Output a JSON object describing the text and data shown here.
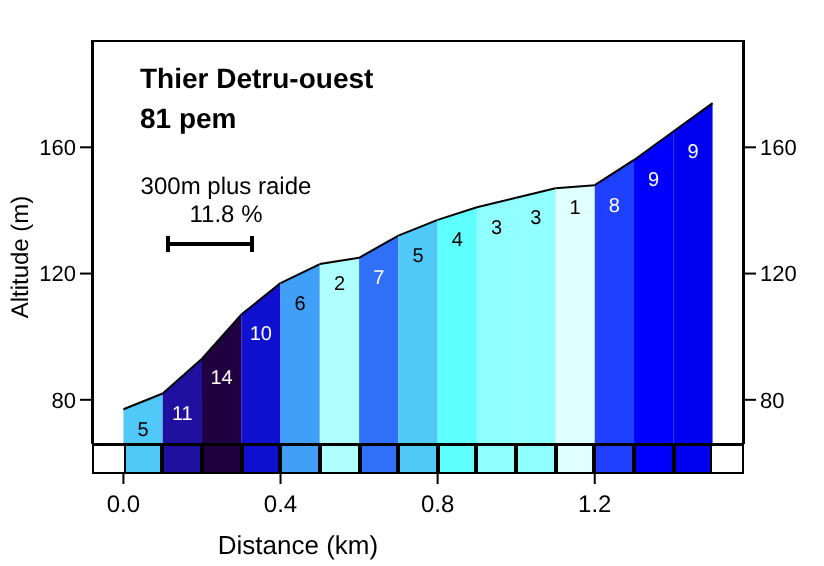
{
  "chart_data": {
    "type": "area",
    "title": "Thier Detru-ouest",
    "subtitle": "81 pem",
    "xlabel": "Distance (km)",
    "ylabel": "Altitude (m)",
    "xlim": [
      -0.08,
      1.58
    ],
    "xticks": [
      {
        "value": 0,
        "label": "0.0"
      },
      {
        "value": 0.4,
        "label": "0.4"
      },
      {
        "value": 0.8,
        "label": "0.8"
      },
      {
        "value": 1.2,
        "label": "1.2"
      }
    ],
    "ylim": [
      66,
      194
    ],
    "yticks": [
      80,
      120,
      160
    ],
    "y2lim": [
      66,
      194
    ],
    "y2ticks": [
      80,
      120,
      160
    ],
    "grid": false,
    "legend": false,
    "annotations": [
      "300m plus raide",
      "11.8 %",
      "5",
      "11",
      "14",
      "10",
      "6",
      "2",
      "7",
      "5",
      "4",
      "3",
      "3",
      "1",
      "8",
      "9",
      "9"
    ],
    "series": [
      {
        "color": "#50c8f8",
        "x": [
          0,
          0.1
        ],
        "values": [
          77,
          82
        ]
      },
      {
        "color": "#2010a0",
        "x": [
          0.1,
          0.2
        ],
        "values": [
          82,
          93
        ]
      },
      {
        "color": "#200040",
        "x": [
          0.2,
          0.3
        ],
        "values": [
          93,
          107
        ]
      },
      {
        "color": "#1010d0",
        "x": [
          0.3,
          0.4
        ],
        "values": [
          107,
          117
        ]
      },
      {
        "color": "#40a0f8",
        "x": [
          0.4,
          0.5
        ],
        "values": [
          117,
          123
        ]
      },
      {
        "color": "#b0ffff",
        "x": [
          0.5,
          0.6
        ],
        "values": [
          123,
          125
        ]
      },
      {
        "color": "#3070f8",
        "x": [
          0.6,
          0.7
        ],
        "values": [
          125,
          132
        ]
      },
      {
        "color": "#50c8f8",
        "x": [
          0.7,
          0.8
        ],
        "values": [
          132,
          137
        ]
      },
      {
        "color": "#60ffff",
        "x": [
          0.8,
          0.9
        ],
        "values": [
          137,
          141
        ]
      },
      {
        "color": "#90ffff",
        "x": [
          0.9,
          1.0
        ],
        "values": [
          141,
          144
        ]
      },
      {
        "color": "#90ffff",
        "x": [
          1.0,
          1.1
        ],
        "values": [
          144,
          147
        ]
      },
      {
        "color": "#e0ffff",
        "x": [
          1.1,
          1.2
        ],
        "values": [
          147,
          148
        ]
      },
      {
        "color": "#2040ff",
        "x": [
          1.2,
          1.3
        ],
        "values": [
          148,
          156
        ]
      },
      {
        "color": "#0000ff",
        "x": [
          1.3,
          1.4
        ],
        "values": [
          156,
          165
        ]
      },
      {
        "color": "#0000f0",
        "x": [
          1.4,
          1.5
        ],
        "values": [
          165,
          174
        ]
      }
    ]
  }
}
